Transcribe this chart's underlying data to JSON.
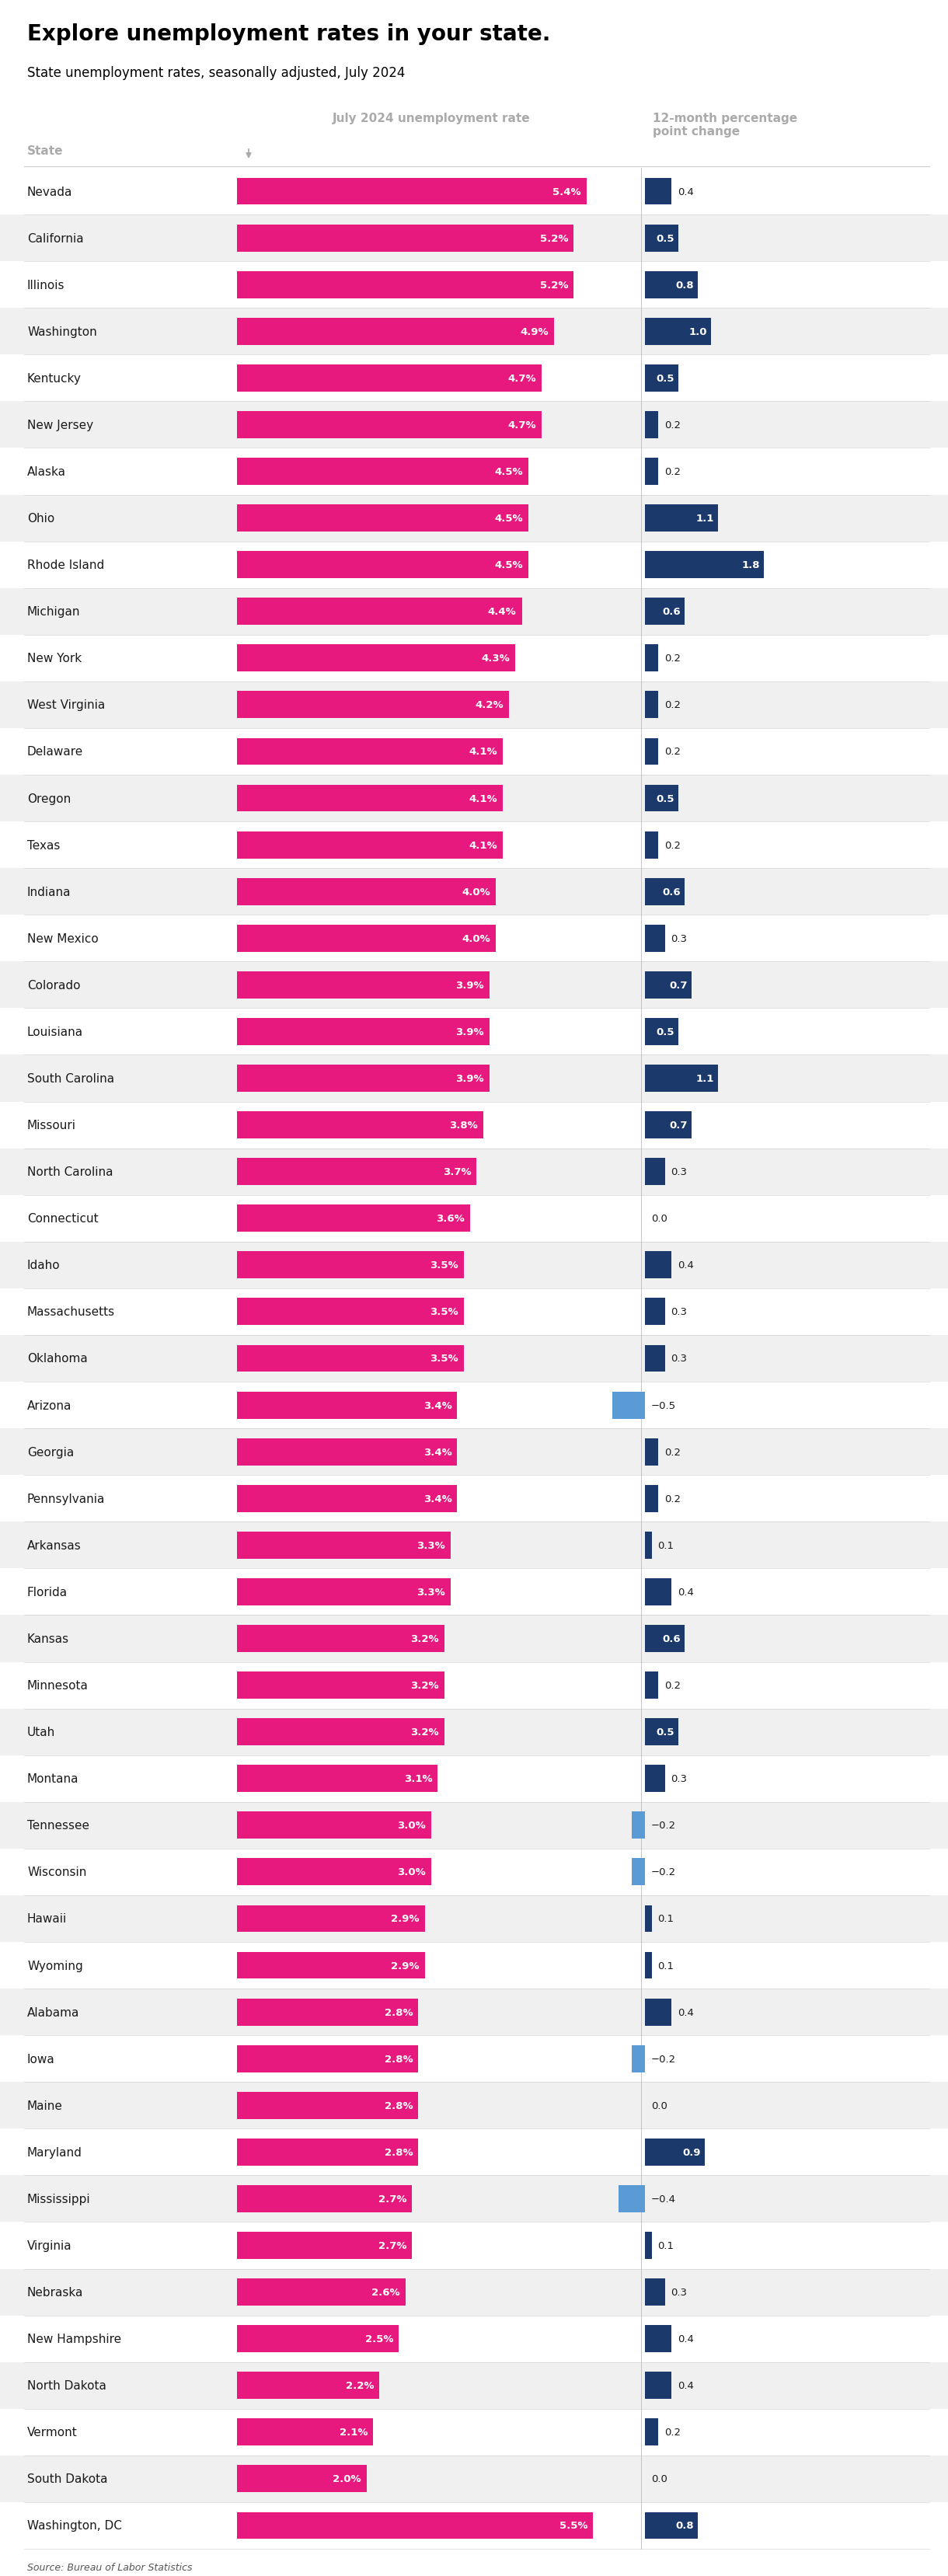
{
  "title": "Explore unemployment rates in your state.",
  "subtitle": "State unemployment rates, seasonally adjusted, July 2024",
  "col1_header": "July 2024 unemployment rate",
  "col2_header": "12-month percentage\npoint change",
  "state_label": "State",
  "source": "Source: Bureau of Labor Statistics",
  "states": [
    "Nevada",
    "California",
    "Illinois",
    "Washington",
    "Kentucky",
    "New Jersey",
    "Alaska",
    "Ohio",
    "Rhode Island",
    "Michigan",
    "New York",
    "West Virginia",
    "Delaware",
    "Oregon",
    "Texas",
    "Indiana",
    "New Mexico",
    "Colorado",
    "Louisiana",
    "South Carolina",
    "Missouri",
    "North Carolina",
    "Connecticut",
    "Idaho",
    "Massachusetts",
    "Oklahoma",
    "Arizona",
    "Georgia",
    "Pennsylvania",
    "Arkansas",
    "Florida",
    "Kansas",
    "Minnesota",
    "Utah",
    "Montana",
    "Tennessee",
    "Wisconsin",
    "Hawaii",
    "Wyoming",
    "Alabama",
    "Iowa",
    "Maine",
    "Maryland",
    "Mississippi",
    "Virginia",
    "Nebraska",
    "New Hampshire",
    "North Dakota",
    "Vermont",
    "South Dakota",
    "Washington, DC"
  ],
  "unemployment_rate": [
    5.4,
    5.2,
    5.2,
    4.9,
    4.7,
    4.7,
    4.5,
    4.5,
    4.5,
    4.4,
    4.3,
    4.2,
    4.1,
    4.1,
    4.1,
    4.0,
    4.0,
    3.9,
    3.9,
    3.9,
    3.8,
    3.7,
    3.6,
    3.5,
    3.5,
    3.5,
    3.4,
    3.4,
    3.4,
    3.3,
    3.3,
    3.2,
    3.2,
    3.2,
    3.1,
    3.0,
    3.0,
    2.9,
    2.9,
    2.8,
    2.8,
    2.8,
    2.8,
    2.7,
    2.7,
    2.6,
    2.5,
    2.2,
    2.1,
    2.0,
    5.5
  ],
  "yoy_change": [
    0.4,
    0.5,
    0.8,
    1.0,
    0.5,
    0.2,
    0.2,
    1.1,
    1.8,
    0.6,
    0.2,
    0.2,
    0.2,
    0.5,
    0.2,
    0.6,
    0.3,
    0.7,
    0.5,
    1.1,
    0.7,
    0.3,
    0.0,
    0.4,
    0.3,
    0.3,
    -0.5,
    0.2,
    0.2,
    0.1,
    0.4,
    0.6,
    0.2,
    0.5,
    0.3,
    -0.2,
    -0.2,
    0.1,
    0.1,
    0.4,
    -0.2,
    0.0,
    0.9,
    -0.4,
    0.1,
    0.3,
    0.4,
    0.4,
    0.2,
    0.0,
    0.8
  ],
  "bar_color_pink": "#E8197E",
  "bar_color_blue_dark": "#1B3A6B",
  "bar_color_blue_neg": "#5B9BD5",
  "bg_color_white": "#FFFFFF",
  "bg_color_gray": "#F0F0F0",
  "text_color_dark": "#1A1A1A",
  "text_color_gray": "#AAAAAA",
  "divider_color": "#CCCCCC"
}
